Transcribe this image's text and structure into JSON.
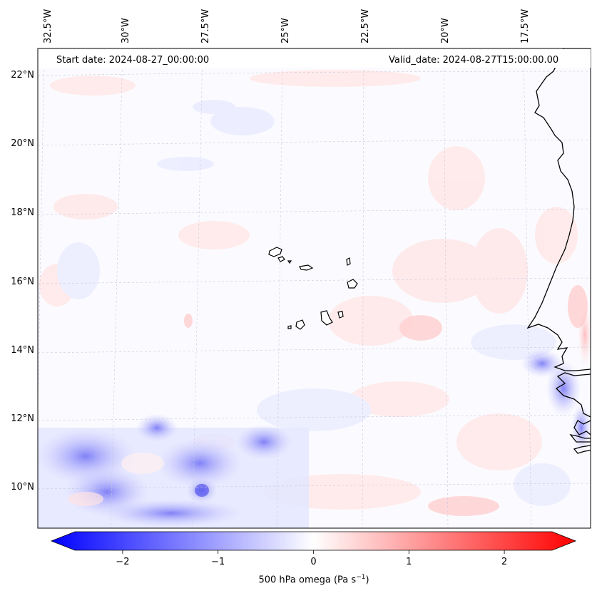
{
  "map": {
    "start_date": "Start date: 2024-08-27_00:00:00",
    "valid_date": "Valid_date: 2024-08-27T15:00:00.00",
    "longitude_labels": [
      "32.5°W",
      "30°W",
      "27.5°W",
      "25°W",
      "22.5°W",
      "20°W",
      "17.5°W"
    ],
    "latitude_labels": [
      "22°N",
      "20°N",
      "18°N",
      "16°N",
      "14°N",
      "12°N",
      "10°N"
    ],
    "variable": "500 hPa omega",
    "units": "Pa s",
    "units_exponent": "−1",
    "features": [
      "coastline-west-africa",
      "cape-verde-islands"
    ]
  },
  "colorbar": {
    "ticks": [
      "−2",
      "−1",
      "0",
      "1",
      "2"
    ],
    "tick_values": [
      -2,
      -1,
      0,
      1,
      2
    ],
    "range": [
      -2.5,
      2.5
    ],
    "colormap": "bwr",
    "negative_color": "#0000ff",
    "neutral_color": "#ffffff",
    "positive_color": "#ff0000"
  }
}
